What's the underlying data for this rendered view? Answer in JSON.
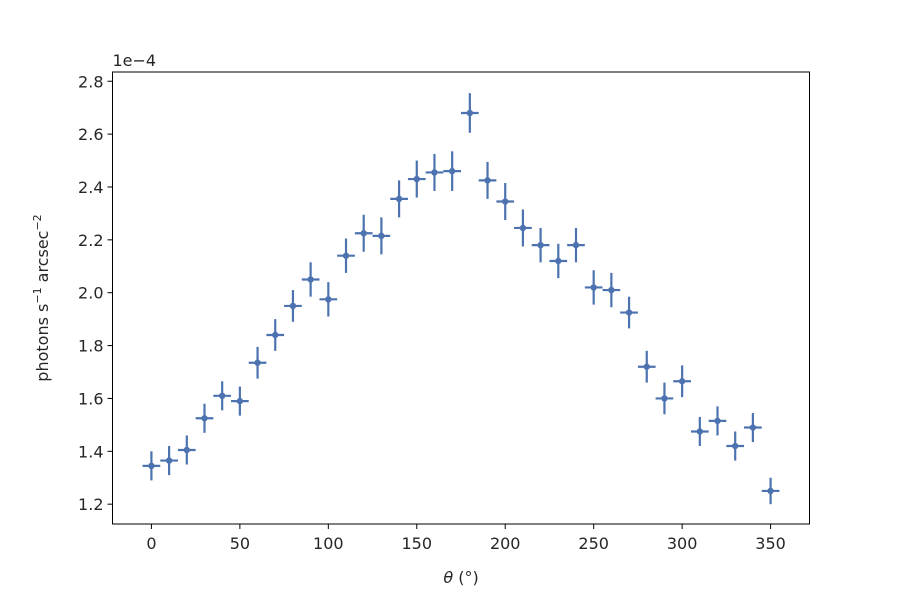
{
  "chart_data": {
    "type": "scatter",
    "title": "",
    "xlabel_symbol": "θ",
    "xlabel_unit": " (°)",
    "ylabel_main": "photons s",
    "ylabel_sup1": "−1",
    "ylabel_mid": " arcsec",
    "ylabel_sup2": "−2",
    "y_multiplier": "1e−4",
    "xlim": [
      -22,
      372
    ],
    "ylim": [
      1.125,
      2.835
    ],
    "xticks": [
      0,
      50,
      100,
      150,
      200,
      250,
      300,
      350
    ],
    "yticks": [
      1.2,
      1.4,
      1.6,
      1.8,
      2.0,
      2.2,
      2.4,
      2.6,
      2.8
    ],
    "yscale_factor": 0.0001,
    "grid": false,
    "marker_color": "#4c72b0",
    "x_error": 5,
    "x": [
      0,
      10,
      20,
      30,
      40,
      50,
      60,
      70,
      80,
      90,
      100,
      110,
      120,
      130,
      140,
      150,
      160,
      170,
      180,
      190,
      200,
      210,
      220,
      230,
      240,
      250,
      260,
      270,
      280,
      290,
      300,
      310,
      320,
      330,
      340,
      350
    ],
    "y": [
      1.345,
      1.365,
      1.405,
      1.525,
      1.61,
      1.59,
      1.735,
      1.84,
      1.95,
      2.05,
      1.975,
      2.14,
      2.225,
      2.215,
      2.355,
      2.43,
      2.455,
      2.46,
      2.68,
      2.425,
      2.345,
      2.245,
      2.18,
      2.12,
      2.18,
      2.02,
      2.01,
      1.925,
      1.72,
      1.6,
      1.665,
      1.475,
      1.515,
      1.42,
      1.49,
      1.25
    ],
    "y_error": [
      0.055,
      0.055,
      0.055,
      0.055,
      0.055,
      0.055,
      0.06,
      0.06,
      0.06,
      0.065,
      0.065,
      0.065,
      0.07,
      0.07,
      0.07,
      0.07,
      0.07,
      0.075,
      0.075,
      0.07,
      0.07,
      0.07,
      0.065,
      0.065,
      0.065,
      0.065,
      0.065,
      0.06,
      0.06,
      0.06,
      0.06,
      0.055,
      0.055,
      0.055,
      0.055,
      0.05
    ]
  }
}
